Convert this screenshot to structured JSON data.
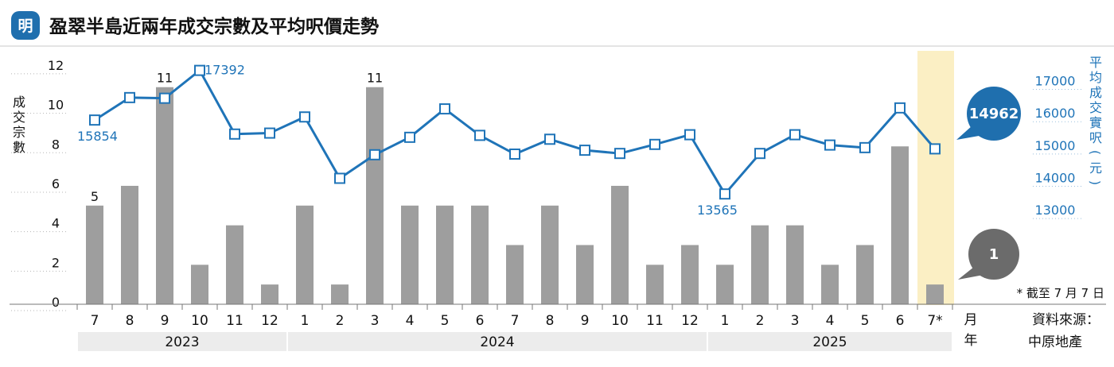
{
  "header": {
    "logo_text": "明",
    "title": "盈翠半島近兩年成交宗數及平均呎價走勢"
  },
  "chart_data": {
    "type": "bar+line",
    "title": "盈翠半島近兩年成交宗數及平均呎價走勢",
    "categories": [
      "7",
      "8",
      "9",
      "10",
      "11",
      "12",
      "1",
      "2",
      "3",
      "4",
      "5",
      "6",
      "7",
      "8",
      "9",
      "10",
      "11",
      "12",
      "1",
      "2",
      "3",
      "4",
      "5",
      "6",
      "7*"
    ],
    "years": [
      {
        "label": "2023",
        "from": 0,
        "to": 5
      },
      {
        "label": "2024",
        "from": 6,
        "to": 17
      },
      {
        "label": "2025",
        "from": 18,
        "to": 24
      }
    ],
    "series": [
      {
        "type": "bar",
        "axis": "left",
        "values": [
          5,
          6,
          11,
          2,
          4,
          1,
          5,
          1,
          11,
          5,
          5,
          5,
          3,
          5,
          3,
          6,
          2,
          3,
          2,
          4,
          4,
          2,
          3,
          8,
          1
        ]
      },
      {
        "type": "line",
        "axis": "right",
        "values": [
          15854,
          16550,
          16530,
          17392,
          15420,
          15450,
          15950,
          14050,
          14780,
          15320,
          16200,
          15380,
          14800,
          15260,
          14920,
          14820,
          15100,
          15400,
          13565,
          14820,
          15400,
          15080,
          15000,
          16230,
          14962
        ]
      }
    ],
    "bar_value_labels": [
      {
        "index": 0,
        "text": "5"
      },
      {
        "index": 2,
        "text": "11"
      },
      {
        "index": 8,
        "text": "11"
      }
    ],
    "line_value_labels": [
      {
        "index": 0,
        "text": "15854"
      },
      {
        "index": 3,
        "text": "17392"
      },
      {
        "index": 18,
        "text": "13565"
      }
    ],
    "left_axis": {
      "label": [
        "成",
        "交",
        "宗",
        "數"
      ],
      "ticks": [
        0,
        2,
        4,
        6,
        8,
        10,
        12
      ],
      "range": [
        0,
        12.6
      ]
    },
    "right_axis": {
      "label": [
        "平",
        "均",
        "成",
        "交",
        "實",
        "呎",
        "(",
        "元",
        ")"
      ],
      "ticks": [
        13000,
        14000,
        15000,
        16000,
        17000
      ],
      "range": [
        10150,
        17850
      ]
    },
    "highlight_index": 24,
    "callouts": {
      "price": "14962",
      "count": "1"
    },
    "xaxis_month_label": "月",
    "xaxis_year_label": "年",
    "footnote": "* 截至 7 月 7 日",
    "source": [
      "資料來源：",
      "中原地產"
    ],
    "colors": {
      "bar": "#9e9e9e",
      "line": "#1f74b8",
      "highlight": "#fbefc4",
      "callout_price": "#1f6fae",
      "callout_count": "#6b6b6b",
      "year_band": "#ececec"
    }
  }
}
